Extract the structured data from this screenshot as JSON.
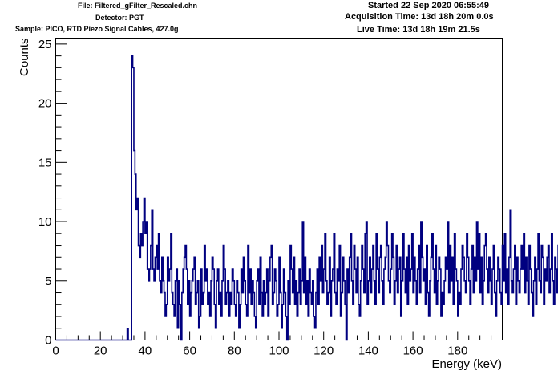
{
  "header": {
    "file": "File: Filtered_gFilter_Rescaled.chn",
    "detector": "Detector: PGT",
    "sample": "Sample: PICO, RTD Piezo Signal Cables, 427.0g",
    "started": "Started 22 Sep 2020 06:55:49",
    "acquisition": "Acquisition Time: 13d 18h 20m 0.0s",
    "live": "Live Time: 13d 18h 19m 21.5s"
  },
  "chart_data": {
    "type": "line",
    "style": "step-histogram",
    "color": "#000080",
    "xlabel": "Energy (keV)",
    "ylabel": "Counts",
    "xlim": [
      0,
      200
    ],
    "ylim": [
      0,
      25.5
    ],
    "bin_width": 0.5,
    "x_start": 16.0,
    "x_ticks": [
      0,
      20,
      40,
      60,
      80,
      100,
      120,
      140,
      160,
      180
    ],
    "y_ticks": [
      0,
      5,
      10,
      15,
      20,
      25
    ],
    "values": [
      0,
      0,
      0,
      0,
      0,
      0,
      0,
      0,
      0,
      0,
      0,
      0,
      0,
      0,
      0,
      0,
      0,
      0,
      0,
      0,
      0,
      0,
      0,
      0,
      0,
      0,
      0,
      0,
      0,
      0,
      0,
      0,
      1,
      0,
      0,
      0,
      24,
      23,
      16,
      14,
      11,
      12,
      8,
      7,
      9,
      8,
      10,
      12,
      9,
      10,
      6,
      5,
      6,
      8,
      11,
      6,
      5,
      7,
      8,
      6,
      9,
      5,
      4,
      7,
      5,
      4,
      2,
      3,
      7,
      5,
      6,
      9,
      4,
      3,
      2,
      5,
      6,
      1,
      5,
      3,
      0,
      4,
      6,
      7,
      8,
      6,
      3,
      5,
      2,
      4,
      5,
      6,
      7,
      3,
      4,
      5,
      1,
      2,
      6,
      3,
      4,
      8,
      5,
      6,
      3,
      4,
      2,
      5,
      7,
      6,
      3,
      1,
      5,
      6,
      3,
      4,
      2,
      5,
      8,
      6,
      3,
      4,
      5,
      2,
      4,
      3,
      6,
      5,
      3,
      2,
      5,
      4,
      1,
      3,
      6,
      4,
      7,
      5,
      3,
      2,
      8,
      4,
      6,
      3,
      5,
      4,
      2,
      1,
      5,
      6,
      3,
      7,
      4,
      2,
      5,
      3,
      4,
      6,
      2,
      5,
      7,
      8,
      3,
      4,
      6,
      5,
      2,
      3,
      7,
      4,
      1,
      3,
      6,
      4,
      2,
      0,
      5,
      3,
      8,
      6,
      4,
      7,
      3,
      5,
      2,
      4,
      6,
      3,
      5,
      10,
      4,
      7,
      3,
      5,
      2,
      6,
      4,
      3,
      5,
      2,
      1,
      4,
      6,
      3,
      7,
      5,
      8,
      4,
      6,
      9,
      5,
      3,
      4,
      7,
      2,
      5,
      6,
      9,
      4,
      3,
      6,
      5,
      8,
      2,
      4,
      7,
      5,
      3,
      0,
      6,
      4,
      7,
      9,
      5,
      3,
      8,
      6,
      4,
      7,
      3,
      2,
      5,
      8,
      6,
      4,
      9,
      10,
      3,
      5,
      7,
      4,
      6,
      8,
      5,
      3,
      9,
      6,
      4,
      7,
      8,
      5,
      3,
      6,
      7,
      10,
      8,
      5,
      4,
      6,
      9,
      7,
      3,
      5,
      8,
      4,
      6,
      7,
      2,
      5,
      9,
      6,
      4,
      7,
      3,
      8,
      5,
      6,
      9,
      4,
      7,
      5,
      3,
      6,
      8,
      4,
      10,
      7,
      5,
      6,
      3,
      8,
      4,
      2,
      5,
      7,
      9,
      6,
      4,
      8,
      3,
      5,
      7,
      6,
      2,
      4,
      3,
      5,
      7,
      6,
      10,
      4,
      8,
      5,
      7,
      3,
      9,
      6,
      5,
      2,
      4,
      3,
      6,
      8,
      7,
      5,
      4,
      9,
      7,
      5,
      3,
      6,
      8,
      4,
      7,
      5,
      10,
      6,
      9,
      4,
      7,
      3,
      5,
      8,
      9,
      6,
      4,
      7,
      5,
      3,
      6,
      8,
      4,
      2,
      5,
      7,
      6,
      4,
      3,
      8,
      5,
      9,
      4,
      6,
      3,
      7,
      11,
      5,
      4,
      6,
      8,
      3,
      7,
      5,
      4,
      6,
      8,
      6,
      9,
      4,
      7,
      5,
      3,
      8,
      6,
      4,
      2,
      5,
      7,
      3,
      6,
      9,
      5,
      4,
      8,
      7,
      3,
      6,
      5,
      7,
      8,
      4,
      6,
      9,
      5,
      3,
      7,
      6,
      4,
      8,
      5,
      6,
      7,
      8,
      5,
      3,
      6,
      9,
      4,
      8,
      6,
      5,
      7,
      3,
      10,
      4,
      2,
      6,
      5,
      7,
      3,
      4,
      8,
      6,
      5,
      7,
      2,
      6,
      4
    ]
  }
}
